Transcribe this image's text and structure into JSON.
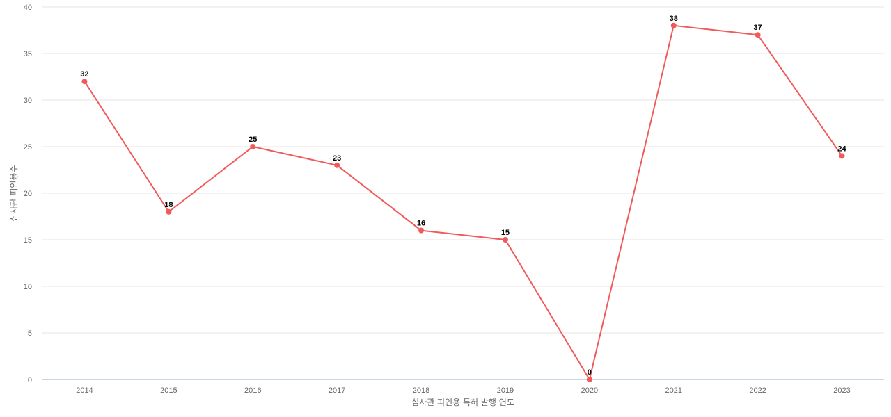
{
  "chart_data": {
    "type": "line",
    "title": "",
    "xlabel": "심사관 피인용 특허 발행 연도",
    "ylabel": "심사관 피인용수",
    "categories": [
      "2014",
      "2015",
      "2016",
      "2017",
      "2018",
      "2019",
      "2020",
      "2021",
      "2022",
      "2023"
    ],
    "values": [
      32,
      18,
      25,
      23,
      16,
      15,
      0,
      38,
      37,
      24
    ],
    "ylim": [
      0,
      40
    ],
    "yticks": [
      0,
      5,
      10,
      15,
      20,
      25,
      30,
      35,
      40
    ],
    "grid": true,
    "data_labels": true,
    "colors": {
      "line": "#f05a5a",
      "grid": "#e6e6e6",
      "axis": "#ccd6eb"
    }
  }
}
